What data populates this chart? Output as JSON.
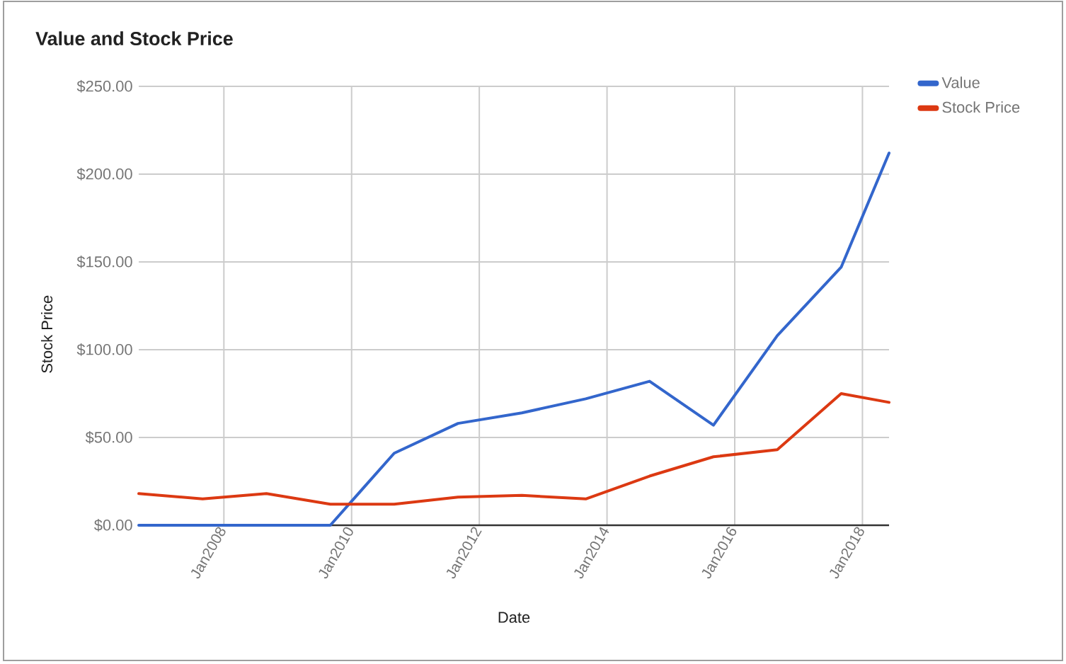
{
  "chart_data": {
    "type": "line",
    "title": "Value and Stock Price",
    "xlabel": "Date",
    "ylabel": "Stock Price",
    "x": [
      "2006-09",
      "2007-09",
      "2008-09",
      "2009-09",
      "2010-09",
      "2011-09",
      "2012-09",
      "2013-09",
      "2014-09",
      "2015-09",
      "2016-09",
      "2017-09",
      "2018-06"
    ],
    "series": [
      {
        "name": "Value",
        "color": "#3366cc",
        "values": [
          0,
          0,
          0,
          0,
          41,
          58,
          64,
          72,
          82,
          57,
          108,
          147,
          212
        ]
      },
      {
        "name": "Stock Price",
        "color": "#dc3912",
        "values": [
          18,
          15,
          18,
          12,
          12,
          16,
          17,
          15,
          28,
          39,
          43,
          75,
          70
        ]
      }
    ],
    "xlim": [
      "2006-09",
      "2018-06"
    ],
    "xticks": [
      {
        "value": "2008-01",
        "label": "Jan2008"
      },
      {
        "value": "2010-01",
        "label": "Jan2010"
      },
      {
        "value": "2012-01",
        "label": "Jan2012"
      },
      {
        "value": "2014-01",
        "label": "Jan2014"
      },
      {
        "value": "2016-01",
        "label": "Jan2016"
      },
      {
        "value": "2018-01",
        "label": "Jan2018"
      }
    ],
    "ylim": [
      0,
      250
    ],
    "yticks": [
      {
        "value": 0,
        "label": "$0.00"
      },
      {
        "value": 50,
        "label": "$50.00"
      },
      {
        "value": 100,
        "label": "$100.00"
      },
      {
        "value": 150,
        "label": "$150.00"
      },
      {
        "value": 200,
        "label": "$200.00"
      },
      {
        "value": 250,
        "label": "$250.00"
      }
    ],
    "grid": true,
    "legend": "top right"
  }
}
